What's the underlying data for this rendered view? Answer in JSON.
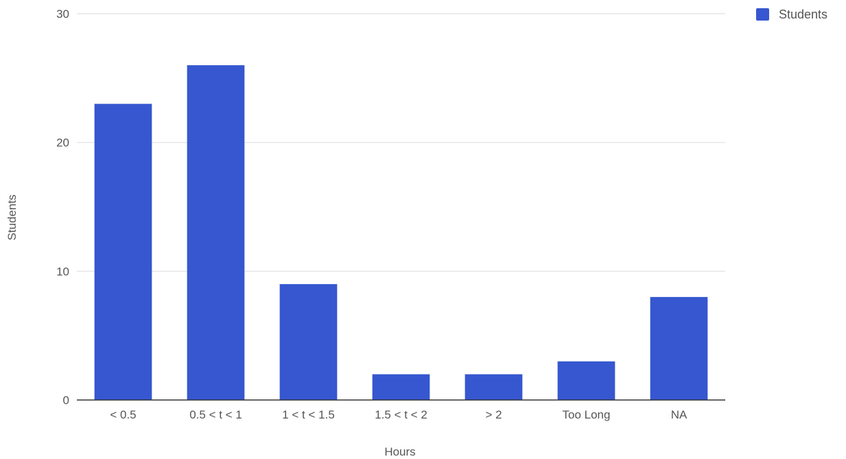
{
  "chart_data": {
    "type": "bar",
    "categories": [
      "< 0.5",
      "0.5 < t < 1",
      "1 < t < 1.5",
      "1.5 < t < 2",
      "> 2",
      "Too Long",
      "NA"
    ],
    "series": [
      {
        "name": "Students",
        "values": [
          23,
          26,
          9,
          2,
          2,
          3,
          8
        ],
        "color": "#3657cf"
      }
    ],
    "xlabel": "Hours",
    "ylabel": "Students",
    "ylim": [
      0,
      30
    ],
    "yticks": [
      0,
      10,
      20,
      30
    ],
    "grid": true,
    "legend_position": "top-right",
    "colors": {
      "bar": "#3657cf",
      "grid": "#e0e0e0",
      "axis": "#333333",
      "text": "#555555"
    }
  }
}
